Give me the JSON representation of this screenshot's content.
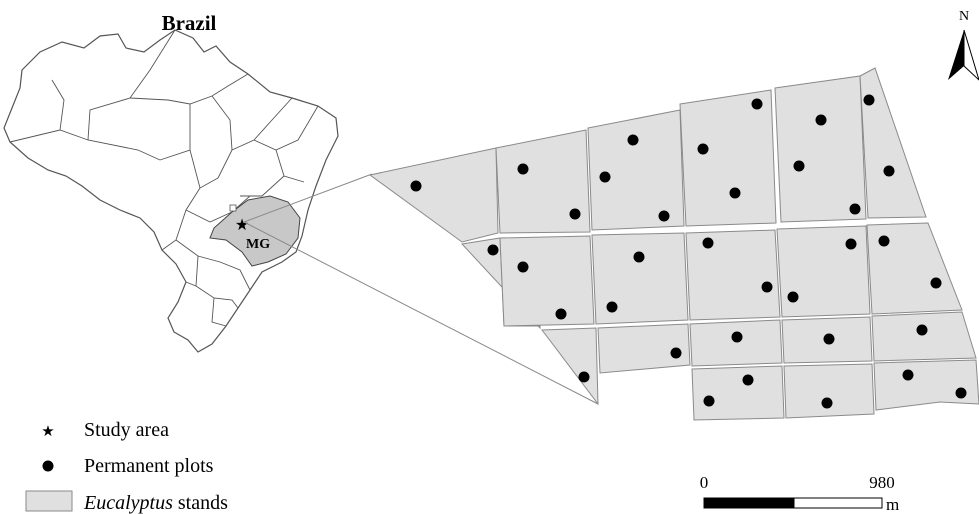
{
  "inset": {
    "title": "Brazil",
    "state_label": "MG"
  },
  "legend": {
    "study_area": "Study area",
    "permanent_plots": "Permanent plots",
    "stands_italic": "Eucalyptus",
    "stands_rest": " stands"
  },
  "scale_bar": {
    "start": "0",
    "end": "980",
    "unit": "m"
  },
  "north_arrow": {
    "label": "N"
  },
  "colors": {
    "stand_fill": "#e0e0e0",
    "stand_stroke": "#8a8a8a",
    "plot": "#000000",
    "mg_fill": "#c8c8c8"
  },
  "plot_count": 39
}
